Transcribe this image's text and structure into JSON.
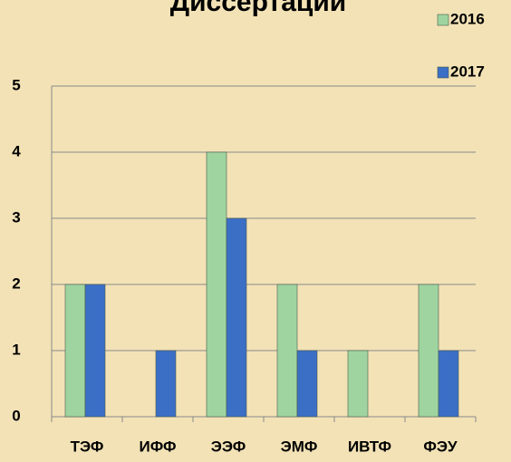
{
  "chart_data": {
    "type": "bar",
    "title": "Диссертации",
    "categories": [
      "ТЭФ",
      "ИФФ",
      "ЭЭФ",
      "ЭМФ",
      "ИВТФ",
      "ФЭУ"
    ],
    "series": [
      {
        "name": "2016",
        "color": "#9fd4a0",
        "values": [
          2,
          0,
          4,
          2,
          1,
          2
        ]
      },
      {
        "name": "2017",
        "color": "#3b6fc6",
        "values": [
          2,
          1,
          3,
          1,
          0,
          1
        ]
      }
    ],
    "ylim": [
      0,
      5
    ],
    "yticks": [
      0,
      1,
      2,
      3,
      4,
      5
    ],
    "grid": true,
    "legend": "top-right"
  }
}
